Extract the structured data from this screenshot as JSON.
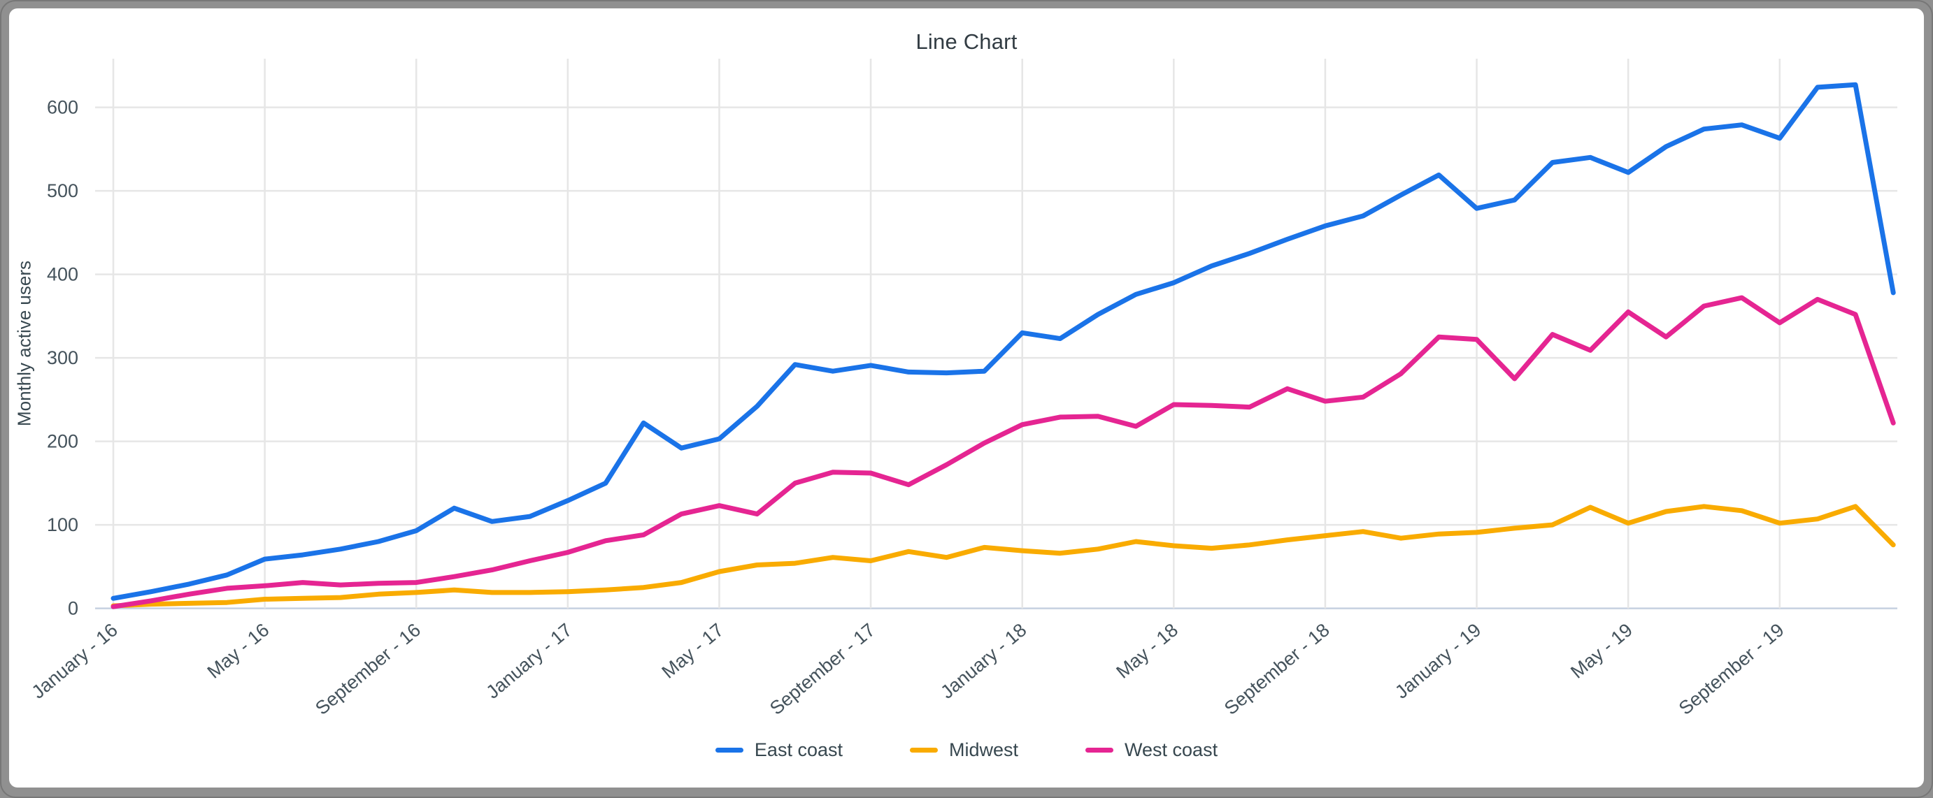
{
  "window": {
    "background_note": "gray rounded frame around white chart card"
  },
  "chart_data": {
    "type": "line",
    "title": "Line Chart",
    "xlabel": "",
    "ylabel": "Monthly active users",
    "ylim": [
      0,
      657
    ],
    "y_ticks": [
      0,
      100,
      200,
      300,
      400,
      500,
      600
    ],
    "grid": true,
    "legend_position": "bottom",
    "categories": [
      "Jan-16",
      "Feb-16",
      "Mar-16",
      "Apr-16",
      "May-16",
      "Jun-16",
      "Jul-16",
      "Aug-16",
      "Sep-16",
      "Oct-16",
      "Nov-16",
      "Dec-16",
      "Jan-17",
      "Feb-17",
      "Mar-17",
      "Apr-17",
      "May-17",
      "Jun-17",
      "Jul-17",
      "Aug-17",
      "Sep-17",
      "Oct-17",
      "Nov-17",
      "Dec-17",
      "Jan-18",
      "Feb-18",
      "Mar-18",
      "Apr-18",
      "May-18",
      "Jun-18",
      "Jul-18",
      "Aug-18",
      "Sep-18",
      "Oct-18",
      "Nov-18",
      "Dec-18",
      "Jan-19",
      "Feb-19",
      "Mar-19",
      "Apr-19",
      "May-19",
      "Jun-19",
      "Jul-19",
      "Aug-19",
      "Sep-19",
      "Oct-19",
      "Nov-19",
      "Dec-19"
    ],
    "x_tick_indices": [
      0,
      4,
      8,
      12,
      16,
      20,
      24,
      28,
      32,
      36,
      40,
      44
    ],
    "x_tick_labels": [
      "January - 16",
      "May - 16",
      "September - 16",
      "January - 17",
      "May - 17",
      "September - 17",
      "January - 18",
      "May - 18",
      "September - 18",
      "January - 19",
      "May - 19",
      "September - 19"
    ],
    "series": [
      {
        "name": "East coast",
        "color": "#1a73e8",
        "values": [
          12,
          20,
          29,
          40,
          59,
          64,
          71,
          80,
          93,
          120,
          104,
          110,
          129,
          150,
          222,
          192,
          203,
          242,
          292,
          284,
          291,
          283,
          282,
          284,
          330,
          323,
          352,
          376,
          390,
          410,
          425,
          442,
          458,
          470,
          495,
          519,
          479,
          489,
          534,
          540,
          522,
          553,
          574,
          579,
          563,
          624,
          627,
          378
        ]
      },
      {
        "name": "Midwest",
        "color": "#f9ab00",
        "values": [
          3,
          5,
          6,
          7,
          11,
          12,
          13,
          17,
          19,
          22,
          19,
          19,
          20,
          22,
          25,
          31,
          44,
          52,
          54,
          61,
          57,
          68,
          61,
          73,
          69,
          66,
          71,
          80,
          75,
          72,
          76,
          82,
          87,
          92,
          84,
          89,
          91,
          96,
          100,
          121,
          102,
          116,
          122,
          117,
          102,
          107,
          122,
          76
        ]
      },
      {
        "name": "West coast",
        "color": "#e52592",
        "values": [
          2,
          9,
          17,
          24,
          27,
          31,
          28,
          30,
          31,
          38,
          46,
          57,
          67,
          81,
          88,
          113,
          123,
          113,
          150,
          163,
          162,
          148,
          172,
          198,
          220,
          229,
          230,
          218,
          244,
          243,
          241,
          263,
          248,
          253,
          281,
          325,
          322,
          275,
          328,
          309,
          355,
          325,
          362,
          372,
          342,
          370,
          352,
          222
        ]
      }
    ],
    "colors": {
      "gridline": "#e6e6e6",
      "baseline": "#c6d1e0",
      "tick_text": "#45535c",
      "title_text": "#323c43"
    }
  }
}
